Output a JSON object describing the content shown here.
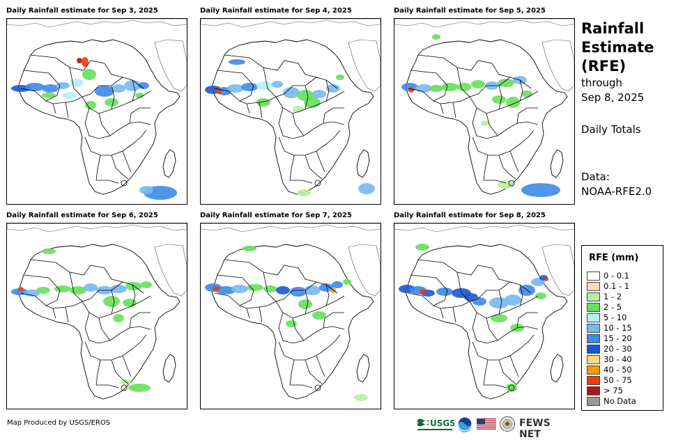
{
  "panels": [
    {
      "title": "Daily Rainfall estimate for Sep 3, 2025"
    },
    {
      "title": "Daily Rainfall estimate for Sep 4, 2025"
    },
    {
      "title": "Daily Rainfall estimate for Sep 5, 2025"
    },
    {
      "title": "Daily Rainfall estimate for Sep 6, 2025"
    },
    {
      "title": "Daily Rainfall estimate for Sep 7, 2025"
    },
    {
      "title": "Daily Rainfall estimate for Sep 8, 2025"
    }
  ],
  "side": {
    "title_line1": "Rainfall",
    "title_line2": "Estimate",
    "title_line3": "(RFE)",
    "through": "through",
    "date": "Sep 8, 2025",
    "totals": "Daily Totals",
    "data_label": "Data:",
    "data_source": "NOAA-RFE2.0"
  },
  "legend": {
    "title": "RFE (mm)",
    "items": [
      {
        "label": "0 - 0.1",
        "color": "#ffffff"
      },
      {
        "label": "0.1 - 1",
        "color": "#f3dcc0"
      },
      {
        "label": "1 - 2",
        "color": "#b8eda2"
      },
      {
        "label": "2 - 5",
        "color": "#66e05a"
      },
      {
        "label": "5 - 10",
        "color": "#b6f0f8"
      },
      {
        "label": "10 - 15",
        "color": "#78b8f0"
      },
      {
        "label": "15 - 20",
        "color": "#3c8ae8"
      },
      {
        "label": "20 - 30",
        "color": "#1b58d0"
      },
      {
        "label": "30 - 40",
        "color": "#f8dc82"
      },
      {
        "label": "40 - 50",
        "color": "#f59a08"
      },
      {
        "label": "50 - 75",
        "color": "#ee3c08"
      },
      {
        "label": "> 75",
        "color": "#a81818"
      },
      {
        "label": "No Data",
        "color": "#999999"
      }
    ]
  },
  "footer": {
    "credit": "Map Produced by USGS/EROS",
    "usgs": "USGS",
    "fewsnet": "FEWS NET"
  }
}
